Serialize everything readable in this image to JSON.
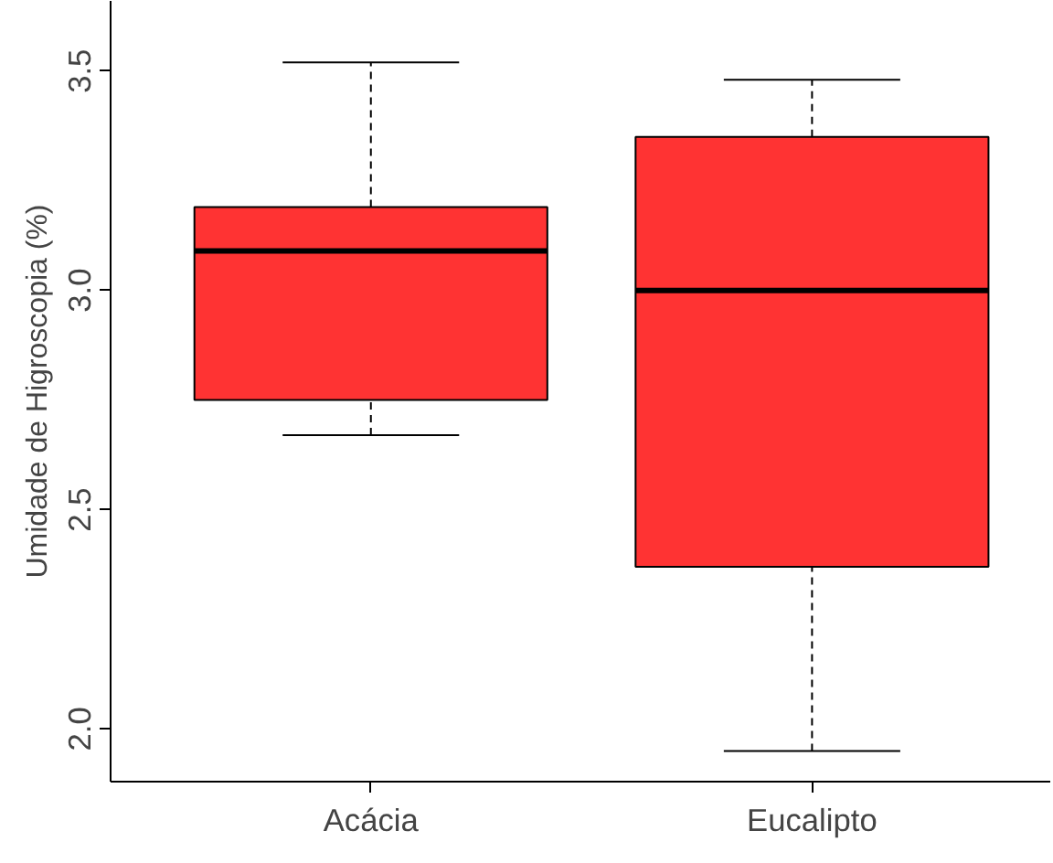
{
  "chart_data": {
    "type": "box",
    "ylabel": "Umidade de Higroscopia (%)",
    "categories": [
      "Acácia",
      "Eucalipto"
    ],
    "boxes": [
      {
        "low": 2.67,
        "q1": 2.75,
        "median": 3.09,
        "q3": 3.19,
        "high": 3.52
      },
      {
        "low": 1.95,
        "q1": 2.37,
        "median": 3.0,
        "q3": 3.35,
        "high": 3.48
      }
    ],
    "color": "#ff3333",
    "ylim": [
      1.88,
      3.66
    ],
    "yticks": [
      {
        "value": 2,
        "label": "2.0"
      },
      2.5,
      {
        "value": 3,
        "label": "3.0"
      },
      3.5
    ],
    "grid": false
  }
}
